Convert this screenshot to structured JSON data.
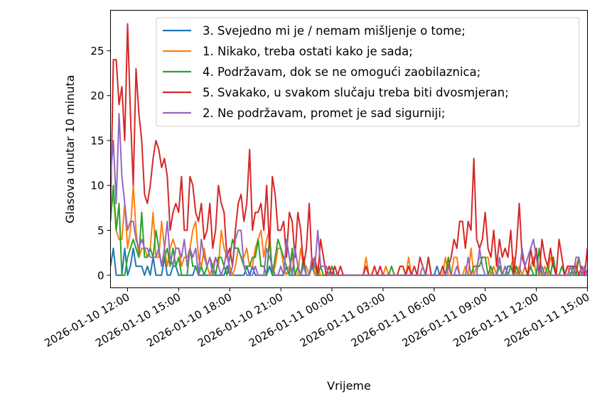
{
  "chart_data": {
    "type": "line",
    "title": "",
    "xlabel": "Vrijeme",
    "ylabel": "Glasova unutar 10 minuta",
    "x_start": "2026-01-10 11:00",
    "x_step_minutes": 10,
    "xlim": [
      "2026-01-10 11:00",
      "2026-01-11 15:00"
    ],
    "ylim": [
      -1.4,
      29.5
    ],
    "yticks": [
      0,
      5,
      10,
      15,
      20,
      25
    ],
    "xticks": [
      "2026-01-10 12:00",
      "2026-01-10 15:00",
      "2026-01-10 18:00",
      "2026-01-10 21:00",
      "2026-01-11 00:00",
      "2026-01-11 03:00",
      "2026-01-11 06:00",
      "2026-01-11 09:00",
      "2026-01-11 12:00",
      "2026-01-11 15:00"
    ],
    "grid": false,
    "legend_position": "top-right",
    "series": [
      {
        "name": "3. Svejedno mi je / nemam mišljenje o tome;",
        "color": "#1f77b4",
        "values": [
          1,
          3,
          0,
          0,
          0,
          3,
          0,
          1,
          3,
          1,
          1,
          1,
          0,
          1,
          0,
          2,
          0,
          0,
          0,
          2,
          0,
          0,
          1,
          1,
          0,
          0,
          0,
          0,
          0,
          0,
          1,
          0,
          0,
          0,
          0,
          0,
          0,
          0,
          0,
          0,
          0,
          1,
          0,
          0,
          0,
          0,
          0,
          0,
          1,
          0,
          1,
          0,
          0,
          0,
          0,
          0,
          1,
          0,
          0,
          0,
          0,
          0,
          1,
          0,
          0,
          0,
          0,
          0,
          0,
          0,
          0,
          1,
          0,
          0,
          0,
          0,
          0,
          0,
          0,
          0,
          0,
          0,
          0,
          0,
          0,
          0,
          0,
          0,
          0,
          0,
          0,
          0,
          0,
          0,
          0,
          0,
          0,
          0,
          0,
          0,
          0,
          0,
          0,
          0,
          0,
          0,
          0,
          0,
          0,
          0,
          0,
          0,
          0,
          0,
          0,
          1,
          0,
          0,
          0,
          0,
          0,
          0,
          0,
          0,
          0,
          0,
          0,
          0,
          0,
          0,
          0,
          0,
          0,
          0,
          0,
          0,
          0,
          0,
          0,
          0,
          1,
          1,
          0,
          0,
          0,
          0,
          0,
          0,
          0,
          0,
          0,
          0,
          0,
          0,
          0,
          0,
          0,
          0,
          0,
          0,
          0,
          0,
          0,
          0,
          0,
          0,
          0,
          0,
          0
        ]
      },
      {
        "name": "1. Nikako, treba ostati kako je sada;",
        "color": "#ff7f0e",
        "values": [
          7,
          9,
          5,
          4,
          4,
          8,
          3,
          5,
          10,
          5,
          2,
          3,
          3,
          2,
          3,
          7,
          2,
          2,
          6,
          3,
          1,
          3,
          4,
          3,
          3,
          1,
          2,
          2,
          3,
          5,
          6,
          2,
          1,
          3,
          1,
          0,
          1,
          2,
          1,
          5,
          3,
          2,
          1,
          0,
          1,
          3,
          2,
          2,
          3,
          1,
          1,
          3,
          4,
          5,
          2,
          4,
          5,
          0,
          1,
          3,
          3,
          1,
          0,
          1,
          2,
          0,
          0,
          3,
          1,
          1,
          0,
          2,
          0,
          1,
          0,
          0,
          0,
          0,
          0,
          0,
          0,
          0,
          0,
          0,
          0,
          0,
          0,
          0,
          0,
          0,
          2,
          0,
          0,
          0,
          0,
          0,
          0,
          1,
          0,
          0,
          0,
          0,
          0,
          0,
          0,
          2,
          0,
          0,
          0,
          0,
          0,
          0,
          0,
          0,
          0,
          0,
          0,
          0,
          2,
          0,
          0,
          2,
          2,
          0,
          0,
          1,
          0,
          3,
          0,
          1,
          2,
          2,
          2,
          2,
          0,
          1,
          0,
          1,
          0,
          1,
          0,
          1,
          2,
          0,
          1,
          0,
          1,
          0,
          1,
          2,
          0,
          0,
          0,
          1,
          0,
          2,
          1,
          0,
          0,
          0,
          0,
          1,
          0,
          0,
          1,
          2,
          0,
          1,
          0
        ]
      },
      {
        "name": "4. Podržavam, dok se ne omogući zaobilaznica;",
        "color": "#2ca02c",
        "values": [
          6,
          10,
          5,
          8,
          0,
          0,
          2,
          3,
          4,
          3,
          2,
          7,
          2,
          2,
          3,
          2,
          5,
          3,
          1,
          2,
          3,
          1,
          3,
          1,
          2,
          0,
          0,
          0,
          3,
          1,
          1,
          0,
          1,
          0,
          1,
          2,
          1,
          0,
          2,
          2,
          1,
          0,
          2,
          4,
          3,
          3,
          2,
          1,
          1,
          1,
          2,
          2,
          4,
          1,
          1,
          0,
          4,
          0,
          2,
          4,
          3,
          2,
          1,
          0,
          3,
          0,
          1,
          0,
          2,
          0,
          0,
          1,
          1,
          0,
          1,
          0,
          0,
          0,
          1,
          0,
          0,
          0,
          0,
          0,
          0,
          0,
          0,
          0,
          0,
          0,
          0,
          0,
          0,
          0,
          0,
          0,
          0,
          0,
          0,
          1,
          0,
          0,
          0,
          0,
          0,
          0,
          0,
          0,
          0,
          0,
          0,
          0,
          2,
          0,
          0,
          0,
          0,
          0,
          0,
          2,
          0,
          0,
          0,
          0,
          0,
          0,
          0,
          0,
          1,
          1,
          1,
          2,
          2,
          0,
          1,
          0,
          0,
          1,
          0,
          0,
          0,
          1,
          0,
          1,
          0,
          0,
          0,
          0,
          1,
          0,
          0,
          3,
          0,
          0,
          1,
          0,
          2,
          0,
          0,
          1,
          0,
          0,
          0,
          1,
          0,
          2,
          0,
          1,
          0
        ]
      },
      {
        "name": "5. Svakako, u svakom slučaju treba biti dvosmjeran;",
        "color": "#d62728",
        "values": [
          7,
          24,
          24,
          19,
          21,
          15,
          28,
          18,
          10,
          23,
          18,
          15,
          9,
          8,
          10,
          13,
          15,
          14,
          12,
          13,
          11,
          5,
          7,
          8,
          7,
          11,
          5,
          5,
          11,
          10,
          7,
          6,
          8,
          4,
          5,
          8,
          3,
          5,
          10,
          8,
          7,
          2,
          3,
          1,
          5,
          8,
          9,
          6,
          8,
          14,
          5,
          7,
          7,
          8,
          5,
          10,
          3,
          11,
          9,
          5,
          5,
          6,
          2,
          7,
          6,
          2,
          7,
          5,
          1,
          3,
          8,
          1,
          2,
          0,
          4,
          2,
          0,
          1,
          0,
          1,
          0,
          1,
          0,
          0,
          0,
          0,
          0,
          0,
          0,
          0,
          1,
          0,
          0,
          1,
          0,
          1,
          0,
          0,
          0,
          0,
          0,
          0,
          1,
          1,
          0,
          1,
          0,
          1,
          0,
          2,
          1,
          0,
          2,
          0,
          0,
          0,
          0,
          1,
          0,
          1,
          2,
          4,
          3,
          6,
          6,
          3,
          6,
          5,
          13,
          4,
          3,
          4,
          7,
          3,
          2,
          5,
          1,
          4,
          2,
          3,
          2,
          5,
          0,
          3,
          8,
          2,
          1,
          0,
          3,
          1,
          3,
          0,
          4,
          2,
          1,
          3,
          1,
          0,
          4,
          2,
          0,
          1,
          1,
          1,
          1,
          0,
          1,
          0,
          3
        ]
      },
      {
        "name": "2. Ne podržavam, promet je sad sigurniji;",
        "color": "#9467bd",
        "values": [
          11,
          15,
          8,
          18,
          11,
          8,
          5,
          6,
          6,
          4,
          3,
          4,
          3,
          3,
          2,
          2,
          2,
          3,
          1,
          3,
          6,
          2,
          1,
          3,
          3,
          2,
          4,
          1,
          3,
          2,
          3,
          0,
          4,
          2,
          1,
          2,
          0,
          2,
          1,
          0,
          1,
          3,
          0,
          1,
          4,
          5,
          5,
          1,
          0,
          0,
          0,
          1,
          0,
          0,
          0,
          3,
          2,
          1,
          0,
          0,
          1,
          0,
          4,
          2,
          0,
          3,
          1,
          0,
          1,
          0,
          0,
          2,
          1,
          5,
          1,
          1,
          1,
          0,
          0,
          0,
          0,
          0,
          0,
          0,
          0,
          0,
          0,
          0,
          0,
          0,
          0,
          0,
          0,
          0,
          0,
          0,
          0,
          0,
          0,
          0,
          0,
          0,
          0,
          0,
          0,
          0,
          0,
          0,
          0,
          0,
          1,
          0,
          0,
          0,
          0,
          0,
          0,
          0,
          0,
          1,
          0,
          0,
          1,
          0,
          0,
          0,
          2,
          0,
          0,
          0,
          3,
          1,
          0,
          0,
          0,
          0,
          0,
          2,
          0,
          1,
          0,
          0,
          0,
          0,
          0,
          3,
          1,
          2,
          3,
          4,
          2,
          0,
          1,
          0,
          0,
          0,
          0,
          0,
          0,
          0,
          0,
          0,
          1,
          0,
          2,
          2,
          0,
          1,
          0
        ]
      }
    ]
  }
}
